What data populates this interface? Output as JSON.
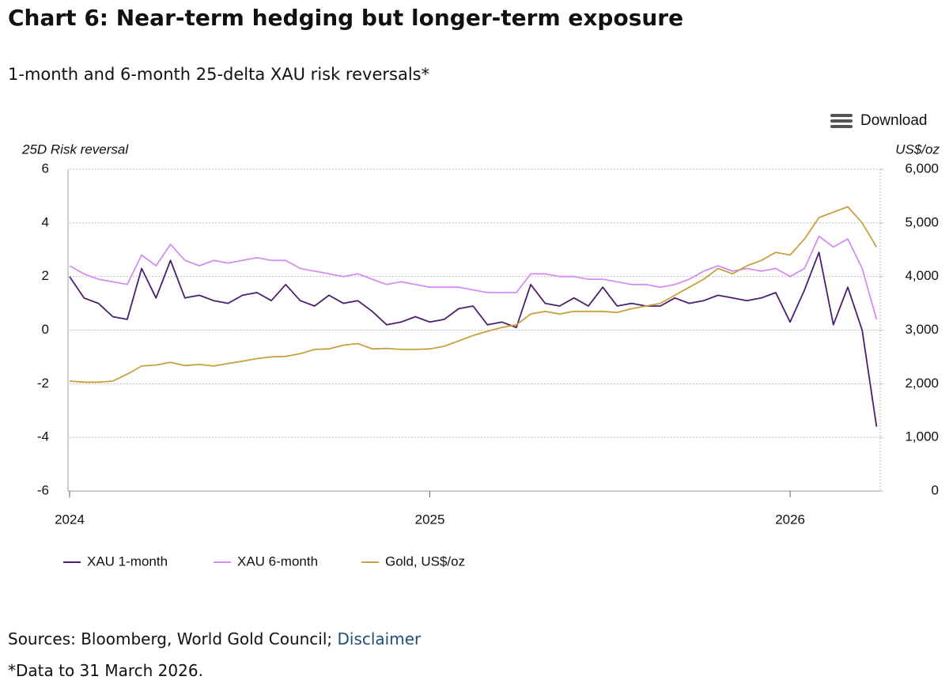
{
  "chart_data": {
    "type": "line",
    "title": "Chart 6: Near-term hedging but longer-term exposure",
    "subtitle": "1-month and 6-month 25-delta XAU risk reversals*",
    "y_label": "25D Risk reversal",
    "y2_label": "US$/oz",
    "x": [
      2024.0,
      2024.04,
      2024.08,
      2024.12,
      2024.16,
      2024.2,
      2024.24,
      2024.28,
      2024.32,
      2024.36,
      2024.4,
      2024.44,
      2024.48,
      2024.52,
      2024.56,
      2024.6,
      2024.64,
      2024.68,
      2024.72,
      2024.76,
      2024.8,
      2024.84,
      2024.88,
      2024.92,
      2024.96,
      2025.0,
      2025.04,
      2025.08,
      2025.12,
      2025.16,
      2025.2,
      2025.24,
      2025.28,
      2025.32,
      2025.36,
      2025.4,
      2025.44,
      2025.48,
      2025.52,
      2025.56,
      2025.6,
      2025.64,
      2025.68,
      2025.72,
      2025.76,
      2025.8,
      2025.84,
      2025.88,
      2025.92,
      2025.96,
      2026.0,
      2026.04,
      2026.08,
      2026.12,
      2026.16,
      2026.2,
      2026.24
    ],
    "xlim": [
      2024,
      2026.25
    ],
    "xticks": [
      2024,
      2025,
      2026
    ],
    "ylim": [
      -6,
      6
    ],
    "yticks": [
      -6,
      -4,
      -2,
      0,
      2,
      4,
      6
    ],
    "y2lim": [
      0,
      6000
    ],
    "y2ticks": [
      0,
      {
        "value": 1000,
        "label": "1,000"
      },
      {
        "value": 2000,
        "label": "2,000"
      },
      {
        "value": 3000,
        "label": "3,000"
      },
      {
        "value": 4000,
        "label": "4,000"
      },
      {
        "value": 5000,
        "label": "5,000"
      },
      {
        "value": 6000,
        "label": "6,000"
      }
    ],
    "grid": true,
    "legend": "bottom-left",
    "series": [
      {
        "name": "XAU 1-month",
        "color": "#4b1f6f",
        "values": [
          2.0,
          1.2,
          1.0,
          0.5,
          0.4,
          2.3,
          1.2,
          2.6,
          1.2,
          1.3,
          1.1,
          1.0,
          1.3,
          1.4,
          1.1,
          1.7,
          1.1,
          0.9,
          1.3,
          1.0,
          1.1,
          0.7,
          0.2,
          0.3,
          0.5,
          0.3,
          0.4,
          0.8,
          0.9,
          0.2,
          0.3,
          0.1,
          1.7,
          1.0,
          0.9,
          1.2,
          0.9,
          1.6,
          0.9,
          1.0,
          0.9,
          0.9,
          1.2,
          1.0,
          1.1,
          1.3,
          1.2,
          1.1,
          1.2,
          1.4,
          0.3,
          1.5,
          2.9,
          0.2,
          1.6,
          0.0,
          -3.6
        ]
      },
      {
        "name": "XAU 6-month",
        "color": "#d68cf5",
        "values": [
          2.4,
          2.1,
          1.9,
          1.8,
          1.7,
          2.8,
          2.4,
          3.2,
          2.6,
          2.4,
          2.6,
          2.5,
          2.6,
          2.7,
          2.6,
          2.6,
          2.3,
          2.2,
          2.1,
          2.0,
          2.1,
          1.9,
          1.7,
          1.8,
          1.7,
          1.6,
          1.6,
          1.6,
          1.5,
          1.4,
          1.4,
          1.4,
          2.1,
          2.1,
          2.0,
          2.0,
          1.9,
          1.9,
          1.8,
          1.7,
          1.7,
          1.6,
          1.7,
          1.9,
          2.2,
          2.4,
          2.2,
          2.3,
          2.2,
          2.3,
          2.0,
          2.3,
          3.5,
          3.1,
          3.4,
          2.3,
          0.4
        ]
      },
      {
        "name": "Gold, US$/oz",
        "color": "#c9a03f",
        "axis": "y2",
        "values": [
          2050,
          2030,
          2030,
          2050,
          2180,
          2330,
          2350,
          2400,
          2340,
          2360,
          2330,
          2380,
          2420,
          2470,
          2500,
          2510,
          2560,
          2640,
          2650,
          2720,
          2750,
          2650,
          2660,
          2640,
          2640,
          2650,
          2700,
          2800,
          2900,
          2980,
          3050,
          3100,
          3300,
          3350,
          3300,
          3350,
          3350,
          3350,
          3330,
          3400,
          3450,
          3500,
          3650,
          3800,
          3950,
          4150,
          4050,
          4200,
          4300,
          4450,
          4400,
          4700,
          5100,
          5200,
          5300,
          5000,
          4550
        ]
      }
    ]
  },
  "toolbar": {
    "download": "Download"
  },
  "footer": {
    "sources": "Sources: Bloomberg, World Gold Council;",
    "disclaimer": "Disclaimer",
    "note": "*Data to 31 March 2026."
  }
}
